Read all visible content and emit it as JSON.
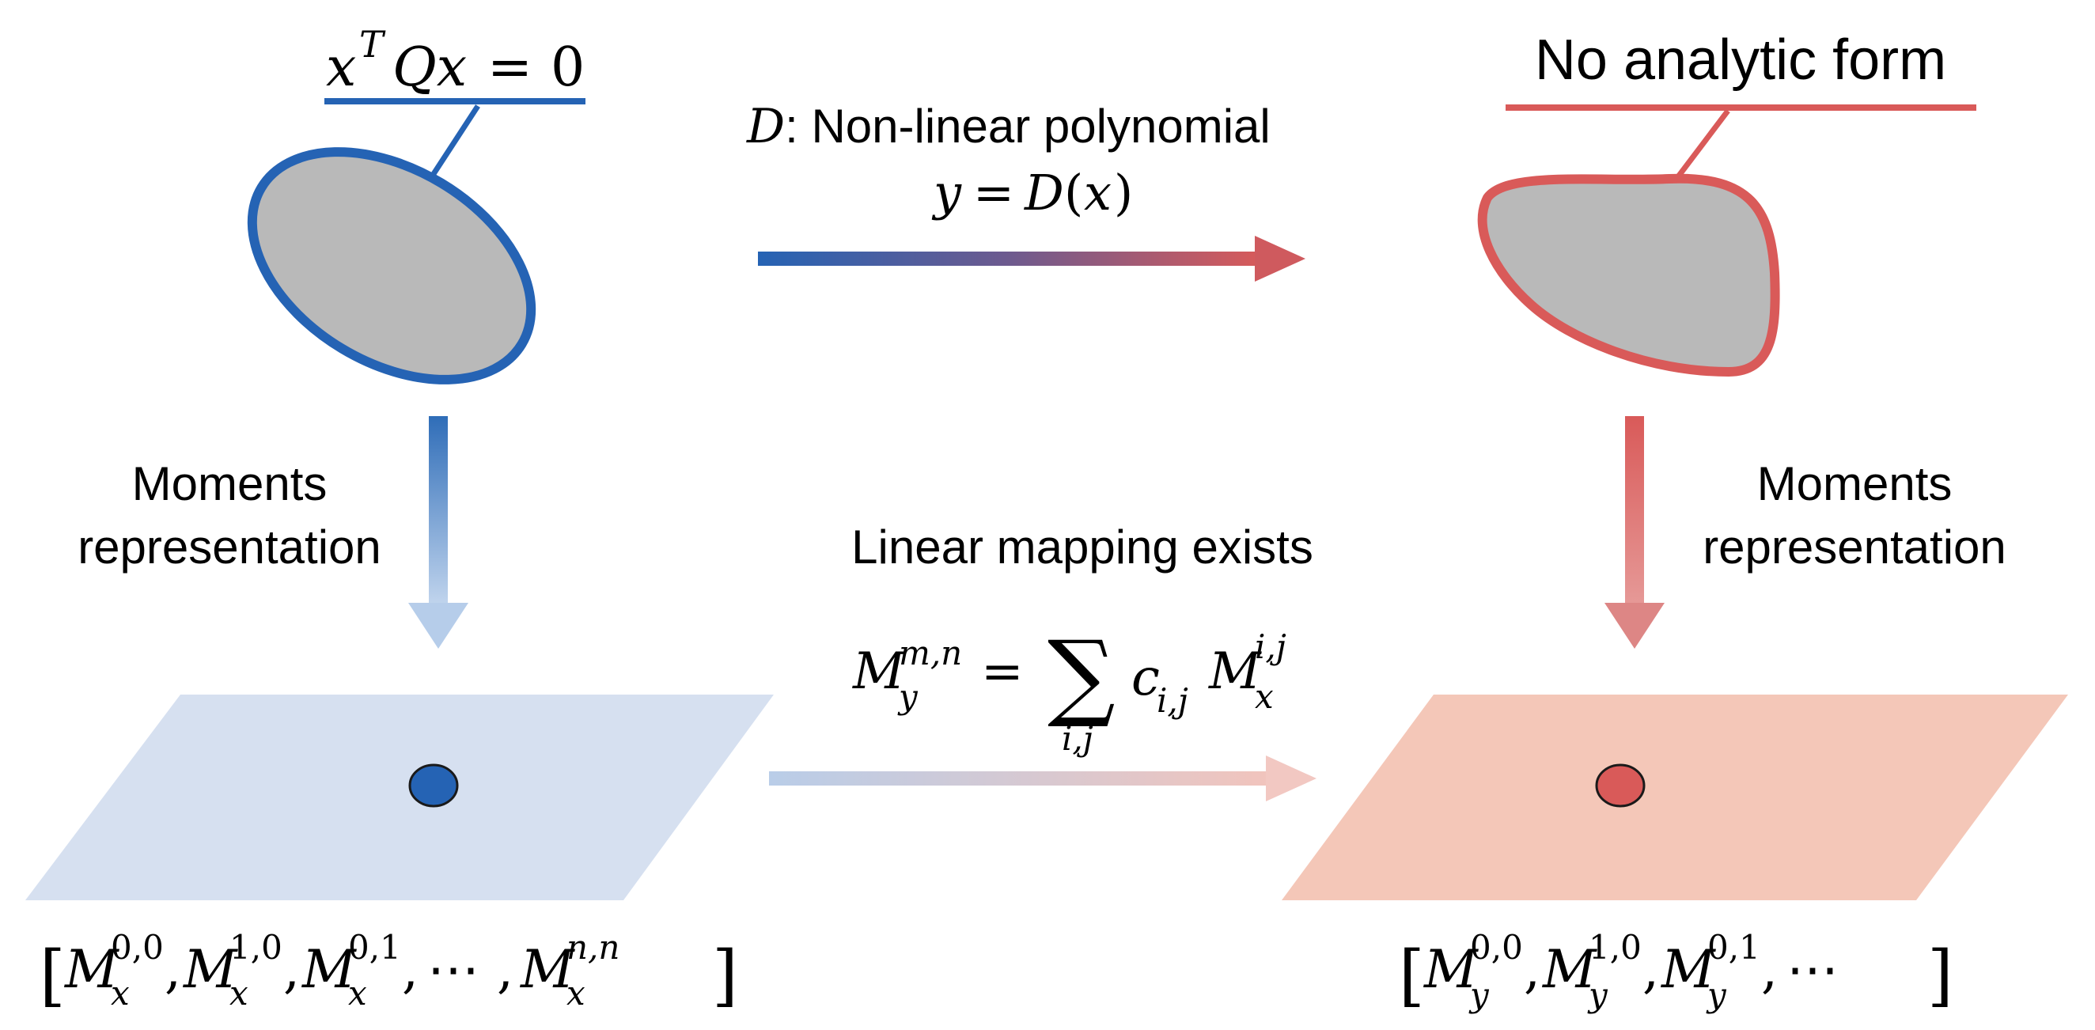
{
  "left_top": {
    "eq_x": "x",
    "eq_T": "T",
    "eq_Qx": "Qx",
    "eq_eq": "=",
    "eq_zero": "0"
  },
  "right_top": {
    "label": "No analytic form"
  },
  "top_arrow": {
    "D": "D",
    "label": ": Non-linear polynomial",
    "eq_y": "y",
    "eq_eq": "=",
    "eq_D": "D",
    "eq_lp": "(",
    "eq_x": "x",
    "eq_rp": ")"
  },
  "left_arrow": {
    "line1": "Moments",
    "line2": "representation"
  },
  "right_arrow": {
    "line1": "Moments",
    "line2": "representation"
  },
  "bottom_arrow": {
    "label": "Linear mapping exists",
    "M": "M",
    "sup_mn": "m,n",
    "sub_y": "y",
    "eq": "=",
    "sum": "∑",
    "sum_sub": "i,j",
    "c": "c",
    "c_sub": "i,j",
    "M2": "M",
    "sup_ij": "i,j",
    "sub_x": "x"
  },
  "left_vec": {
    "open": "[",
    "close": "]",
    "M": "M",
    "sub": "x",
    "sup1": "0,0",
    "sup2": "1,0",
    "sup3": "0,1",
    "supn": "n,n",
    "comma": ",",
    "dots": "⋯"
  },
  "right_vec": {
    "open": "[",
    "close": "]",
    "M": "M",
    "sub": "y",
    "sup1": "0,0",
    "sup2": "1,0",
    "sup3": "0,1",
    "comma": ",",
    "dots": "⋯"
  },
  "colors": {
    "blue": "#2563B4",
    "red": "#D95A59",
    "gray_fill": "#B9B9B9",
    "left_plane": "#D6E0F0",
    "right_plane": "#F4C7B8",
    "blue_light": "#B4CDEA",
    "red_light": "#E3A3A2"
  }
}
